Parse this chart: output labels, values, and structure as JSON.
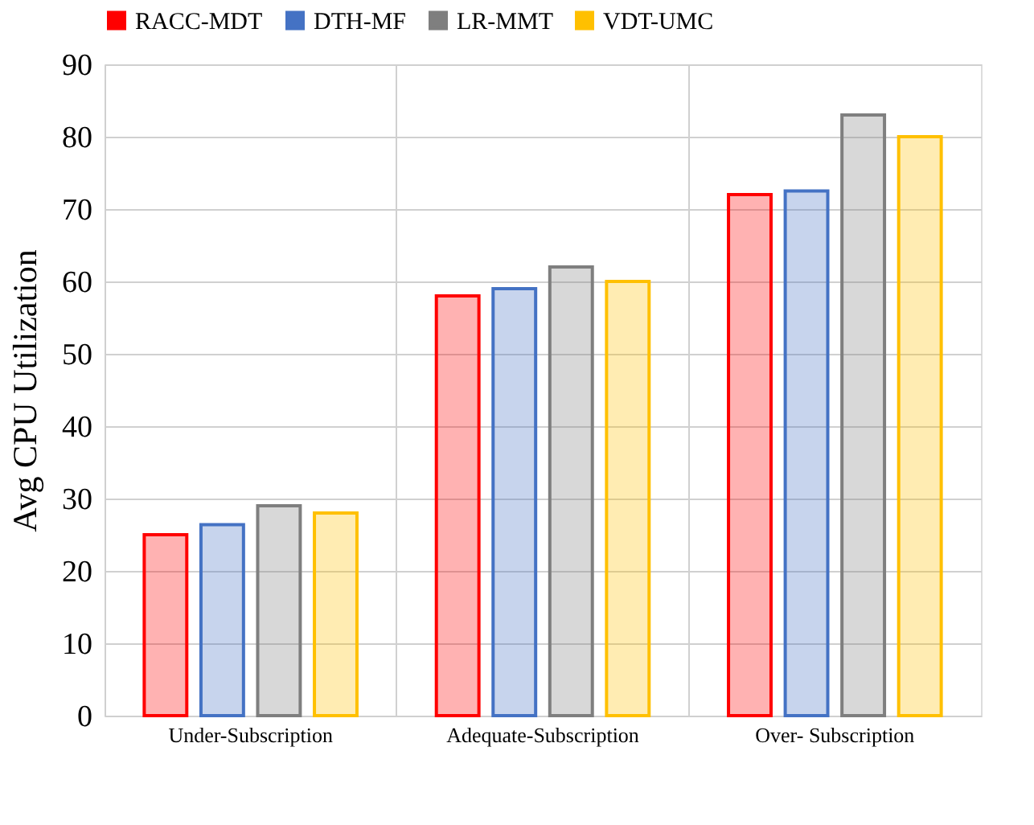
{
  "chart_data": {
    "type": "bar",
    "ylabel": "Avg  CPU  Utilization",
    "categories": [
      "Under-Subscription",
      "Adequate-Subscription",
      "Over- Subscription"
    ],
    "series": [
      {
        "name": "RACC-MDT",
        "color": "#ff0000",
        "values": [
          25,
          58,
          72
        ]
      },
      {
        "name": "DTH-MF",
        "color": "#4472c4",
        "values": [
          26.4,
          59,
          72.5
        ]
      },
      {
        "name": "LR-MMT",
        "color": "#7f7f7f",
        "values": [
          29,
          62,
          83
        ]
      },
      {
        "name": "VDT-UMC",
        "color": "#ffc000",
        "values": [
          28,
          60,
          80
        ]
      }
    ],
    "ylim": [
      0,
      90
    ],
    "yticks": [
      0,
      10,
      20,
      30,
      40,
      50,
      60,
      70,
      80,
      90
    ],
    "grid": true,
    "legend": "top"
  }
}
